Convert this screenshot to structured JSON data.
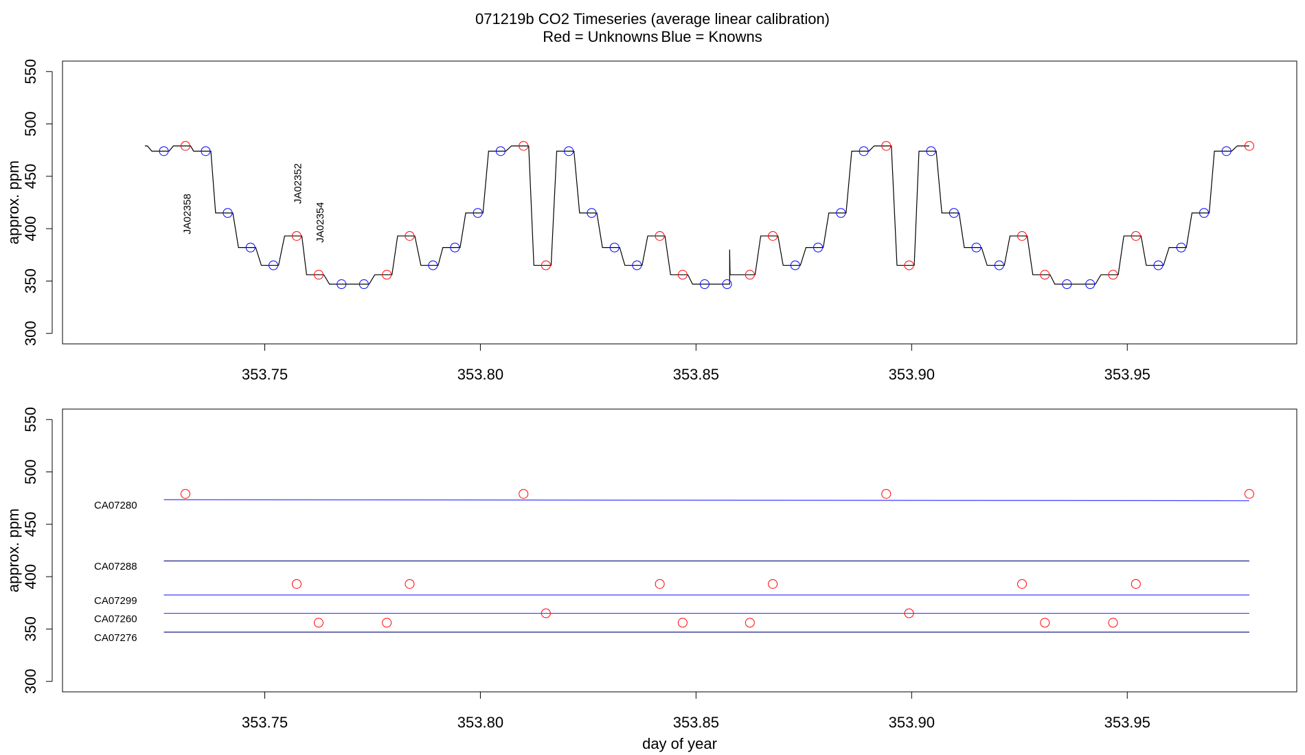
{
  "chart_data": [
    {
      "type": "scatter",
      "title": "071219b   CO2 Timeseries (average linear calibration)",
      "subtitle": [
        {
          "text": "Red = Unknowns",
          "color": "#ff0000"
        },
        {
          "text": "Blue = Knowns",
          "color": "#0000ff"
        }
      ],
      "y_label": "approx. ppm",
      "xlim": [
        353.7031,
        353.9893
      ],
      "ylim": [
        290,
        560
      ],
      "xticks": [
        353.75,
        {
          "value": 353.8,
          "label": "353.80"
        },
        353.85,
        {
          "value": 353.9,
          "label": "353.90"
        },
        353.95
      ],
      "yticks": [
        300,
        350,
        400,
        450,
        500,
        550
      ],
      "annotation_color": "#ff0000",
      "annotations": [
        {
          "text": "JA02358",
          "x": 353.7322,
          "y": 414
        },
        {
          "text": "JA02352",
          "x": 353.7578,
          "y": 443
        },
        {
          "text": "JA02354",
          "x": 353.763,
          "y": 406
        }
      ],
      "series": [
        {
          "style": "line",
          "color": "#000000",
          "x": [
            353.7222,
            353.7228,
            353.7238,
            353.7278,
            353.7288,
            353.7328,
            353.7335,
            353.7375,
            353.7386,
            353.7426,
            353.7439,
            353.7479,
            353.7492,
            353.7532,
            353.7546,
            353.7586,
            353.7597,
            353.7637,
            353.765,
            353.769,
            353.7702,
            353.7742,
            353.7755,
            353.7795,
            353.7808,
            353.7848,
            353.7862,
            353.7902,
            353.7913,
            353.7953,
            353.7966,
            353.8006,
            353.8019,
            353.8059,
            353.8072,
            353.8112,
            353.8124,
            353.8164,
            353.8177,
            353.8217,
            353.823,
            353.827,
            353.8283,
            353.8323,
            353.8335,
            353.8375,
            353.8388,
            353.8428,
            353.8441,
            353.8481,
            353.8492,
            353.8532,
            353.8544,
            353.8578,
            353.8578,
            353.8579,
            353.8637,
            353.865,
            353.869,
            353.8702,
            353.8742,
            353.8755,
            353.8795,
            353.8808,
            353.8848,
            353.8861,
            353.8901,
            353.8913,
            353.8953,
            353.8966,
            353.9006,
            353.9017,
            353.9057,
            353.907,
            353.911,
            353.9122,
            353.9162,
            353.9175,
            353.9215,
            353.9228,
            353.9268,
            353.9281,
            353.9321,
            353.9332,
            353.9372,
            353.9386,
            353.9426,
            353.9439,
            353.9479,
            353.9492,
            353.9532,
            353.9544,
            353.9584,
            353.9597,
            353.9637,
            353.965,
            353.969,
            353.9702,
            353.9742,
            353.9755,
            353.9783
          ],
          "values": [
            479,
            479,
            474,
            474,
            479,
            479,
            474,
            474,
            415,
            415,
            382,
            382,
            365,
            365,
            393,
            393,
            356,
            356,
            347,
            347,
            347,
            347,
            356,
            356,
            393,
            393,
            365,
            365,
            382,
            382,
            415,
            415,
            474,
            474,
            479,
            479,
            365,
            365,
            474,
            474,
            415,
            415,
            382,
            382,
            365,
            365,
            393,
            393,
            356,
            356,
            347,
            347,
            347,
            347,
            380,
            356,
            356,
            393,
            393,
            365,
            365,
            382,
            382,
            415,
            415,
            474,
            474,
            479,
            479,
            365,
            365,
            474,
            474,
            415,
            415,
            382,
            382,
            365,
            365,
            393,
            393,
            356,
            356,
            347,
            347,
            347,
            347,
            356,
            356,
            393,
            393,
            365,
            365,
            382,
            382,
            415,
            415,
            474,
            474,
            479,
            479
          ]
        },
        {
          "style": "points",
          "color": "#ff0000",
          "x": [
            353.7316,
            353.7574,
            353.7625,
            353.7783,
            353.7836,
            353.81,
            353.8152,
            353.8416,
            353.8469,
            353.8625,
            353.8678,
            353.8941,
            353.8994,
            353.9256,
            353.9309,
            353.9467,
            353.952,
            353.9783
          ],
          "values": [
            479,
            393,
            356,
            356,
            393,
            479,
            365,
            393,
            356,
            356,
            393,
            479,
            365,
            393,
            356,
            356,
            393,
            479
          ]
        },
        {
          "style": "points",
          "color": "#0000ff",
          "x": [
            353.7266,
            353.7363,
            353.7414,
            353.7467,
            353.752,
            353.7678,
            353.773,
            353.789,
            353.7941,
            353.7994,
            353.8047,
            353.8205,
            353.8258,
            353.8311,
            353.8363,
            353.852,
            353.8572,
            353.873,
            353.8783,
            353.8836,
            353.8889,
            353.9045,
            353.9098,
            353.915,
            353.9203,
            353.936,
            353.9414,
            353.9572,
            353.9625,
            353.9678,
            353.973
          ],
          "values": [
            474,
            474,
            415,
            382,
            365,
            347,
            347,
            365,
            382,
            415,
            474,
            474,
            415,
            382,
            365,
            347,
            347,
            365,
            382,
            415,
            474,
            474,
            415,
            382,
            365,
            347,
            347,
            365,
            382,
            415,
            474
          ]
        }
      ]
    },
    {
      "type": "scatter",
      "y_label": "approx. ppm",
      "x_label": "day of year",
      "xlim": [
        353.7031,
        353.9893
      ],
      "ylim": [
        290,
        560
      ],
      "xticks": [
        353.75,
        {
          "value": 353.8,
          "label": "353.80"
        },
        353.85,
        {
          "value": 353.9,
          "label": "353.90"
        },
        353.95
      ],
      "yticks": [
        300,
        350,
        400,
        450,
        500,
        550
      ],
      "label_color": "#0000ff",
      "series": [
        {
          "style": "points",
          "color": "#ff0000",
          "x": [
            353.7316,
            353.7574,
            353.7625,
            353.7783,
            353.7836,
            353.81,
            353.8152,
            353.8416,
            353.8469,
            353.8625,
            353.8678,
            353.8941,
            353.8994,
            353.9256,
            353.9309,
            353.9467,
            353.952,
            353.9783
          ],
          "values": [
            479,
            393,
            356,
            356,
            393,
            479,
            365,
            393,
            356,
            356,
            393,
            479,
            365,
            393,
            356,
            356,
            393,
            479
          ]
        },
        {
          "style": "line",
          "name": "CA07280",
          "color": "#3b3bff",
          "x": [
            353.7266,
            353.9783
          ],
          "values": [
            473.5,
            472.5
          ]
        },
        {
          "style": "line",
          "name": "CA07288",
          "color": "#1a1a80",
          "x": [
            353.7266,
            353.9783
          ],
          "values": [
            415,
            415
          ]
        },
        {
          "style": "line",
          "name": "CA07299",
          "color": "#3b3bff",
          "x": [
            353.7266,
            353.9783
          ],
          "values": [
            382.5,
            382.5
          ]
        },
        {
          "style": "line",
          "name": "CA07260",
          "color": "#3b3bff",
          "x": [
            353.7266,
            353.9783
          ],
          "values": [
            365,
            365
          ]
        },
        {
          "style": "line",
          "name": "CA07276",
          "color": "#1a1a80",
          "x": [
            353.7266,
            353.9783
          ],
          "values": [
            347,
            347
          ]
        }
      ]
    }
  ]
}
